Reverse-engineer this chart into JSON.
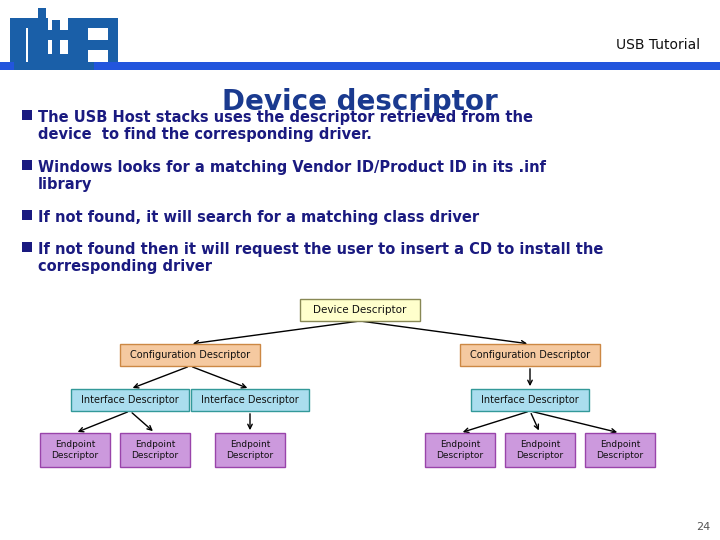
{
  "title": "Device descriptor",
  "title_color": "#1a3a8f",
  "title_fontsize": 20,
  "bullet_color": "#1a1a80",
  "bullet_fontsize": 10.5,
  "bullets": [
    "The USB Host stacks uses the descriptor retrieved from the\ndevice  to find the corresponding driver.",
    "Windows looks for a matching Vendor ID/Product ID in its .inf\nlibrary",
    "If not found, it will search for a matching class driver",
    "If not found then it will request the user to insert a CD to install the\ncorresponding driver"
  ],
  "header_bar_color": "#2255dd",
  "slide_bg": "#ffffff",
  "page_number": "24",
  "node_dd": {
    "label": "Device Descriptor",
    "color": "#ffffcc",
    "border": "#888855"
  },
  "node_cfg": {
    "label": "Configuration Descriptor",
    "color": "#f5c9a0",
    "border": "#cc8844"
  },
  "node_iface": {
    "label": "Interface Descriptor",
    "color": "#aaddee",
    "border": "#339999"
  },
  "node_ep": {
    "label": "Endpoint\nDescriptor",
    "color": "#cc99dd",
    "border": "#9944aa"
  }
}
